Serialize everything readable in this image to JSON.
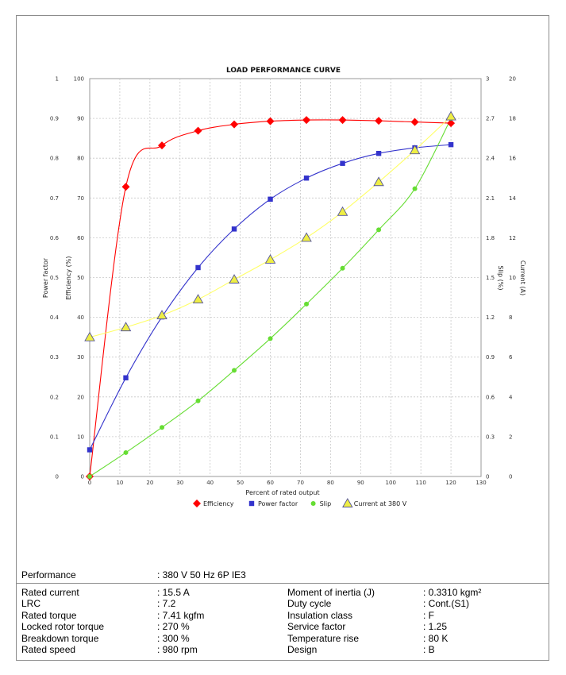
{
  "chart_data": {
    "type": "line",
    "title": "LOAD PERFORMANCE CURVE",
    "xlabel": "Percent of rated output",
    "xlim": [
      0,
      130
    ],
    "xticks": [
      "0",
      "10",
      "20",
      "30",
      "40",
      "50",
      "60",
      "70",
      "80",
      "90",
      "100",
      "110",
      "120",
      "130"
    ],
    "axes": {
      "power_factor": {
        "label": "Power factor",
        "lim": [
          0,
          1
        ],
        "ticks": [
          "0",
          "0.1",
          "0.2",
          "0.3",
          "0.4",
          "0.5",
          "0.6",
          "0.7",
          "0.8",
          "0.9",
          "1"
        ]
      },
      "efficiency": {
        "label": "Efficiency (%)",
        "lim": [
          0,
          100
        ],
        "ticks": [
          "0",
          "10",
          "20",
          "30",
          "40",
          "50",
          "60",
          "70",
          "80",
          "90",
          "100"
        ]
      },
      "slip": {
        "label": "Slip (%)",
        "lim": [
          0,
          3
        ],
        "ticks": [
          "0",
          "0.3",
          "0.6",
          "0.9",
          "1.2",
          "1.5",
          "1.8",
          "2.1",
          "2.4",
          "2.7",
          "3"
        ]
      },
      "current": {
        "label": "Current (A)",
        "lim": [
          0,
          20
        ],
        "ticks": [
          "0",
          "2",
          "4",
          "6",
          "8",
          "10",
          "12",
          "14",
          "16",
          "18",
          "20"
        ]
      }
    },
    "grid": true,
    "legend_position": "bottom",
    "series": [
      {
        "name": "Efficiency",
        "axis": "efficiency",
        "color": "#ff0000",
        "marker": "diamond",
        "x": [
          0,
          12,
          24,
          36,
          48,
          60,
          72,
          84,
          96,
          108,
          120
        ],
        "y": [
          0,
          72.8,
          83.2,
          86.9,
          88.5,
          89.3,
          89.6,
          89.6,
          89.4,
          89.1,
          88.8
        ]
      },
      {
        "name": "Power factor",
        "axis": "power_factor",
        "color": "#3333cc",
        "marker": "square",
        "x": [
          0,
          12,
          24,
          36,
          48,
          60,
          72,
          84,
          96,
          108,
          120
        ],
        "y": [
          0.067,
          0.248,
          0.401,
          0.525,
          0.622,
          0.697,
          0.75,
          0.787,
          0.812,
          0.826,
          0.834
        ]
      },
      {
        "name": "Slip",
        "axis": "slip",
        "color": "#66dd33",
        "marker": "circle",
        "x": [
          0,
          12,
          24,
          36,
          48,
          60,
          72,
          84,
          96,
          108,
          120
        ],
        "y": [
          0,
          0.18,
          0.37,
          0.57,
          0.8,
          1.04,
          1.3,
          1.57,
          1.86,
          2.17,
          2.7
        ]
      },
      {
        "name": "Current at 380 V",
        "axis": "current",
        "color": "#eeee44",
        "marker": "triangle",
        "x": [
          0,
          12,
          24,
          36,
          48,
          60,
          72,
          84,
          96,
          108,
          120
        ],
        "y": [
          7.0,
          7.5,
          8.1,
          8.9,
          9.9,
          10.9,
          12.0,
          13.3,
          14.8,
          16.4,
          18.1
        ]
      }
    ]
  },
  "specs": {
    "performance_label": "Performance",
    "performance_value": ": 380 V 50 Hz 6P IE3",
    "rows": [
      {
        "l1": "Rated current",
        "v1": ": 15.5 A",
        "l2": "Moment of inertia (J)",
        "v2": ": 0.3310 kgm²"
      },
      {
        "l1": "LRC",
        "v1": ": 7.2",
        "l2": "Duty cycle",
        "v2": ": Cont.(S1)"
      },
      {
        "l1": "Rated torque",
        "v1": ": 7.41 kgfm",
        "l2": "Insulation class",
        "v2": ": F"
      },
      {
        "l1": "Locked rotor torque",
        "v1": ": 270 %",
        "l2": "Service factor",
        "v2": ": 1.25"
      },
      {
        "l1": "Breakdown torque",
        "v1": ": 300 %",
        "l2": "Temperature rise",
        "v2": ": 80 K"
      },
      {
        "l1": "Rated speed",
        "v1": ": 980 rpm",
        "l2": "Design",
        "v2": ": B"
      }
    ]
  }
}
